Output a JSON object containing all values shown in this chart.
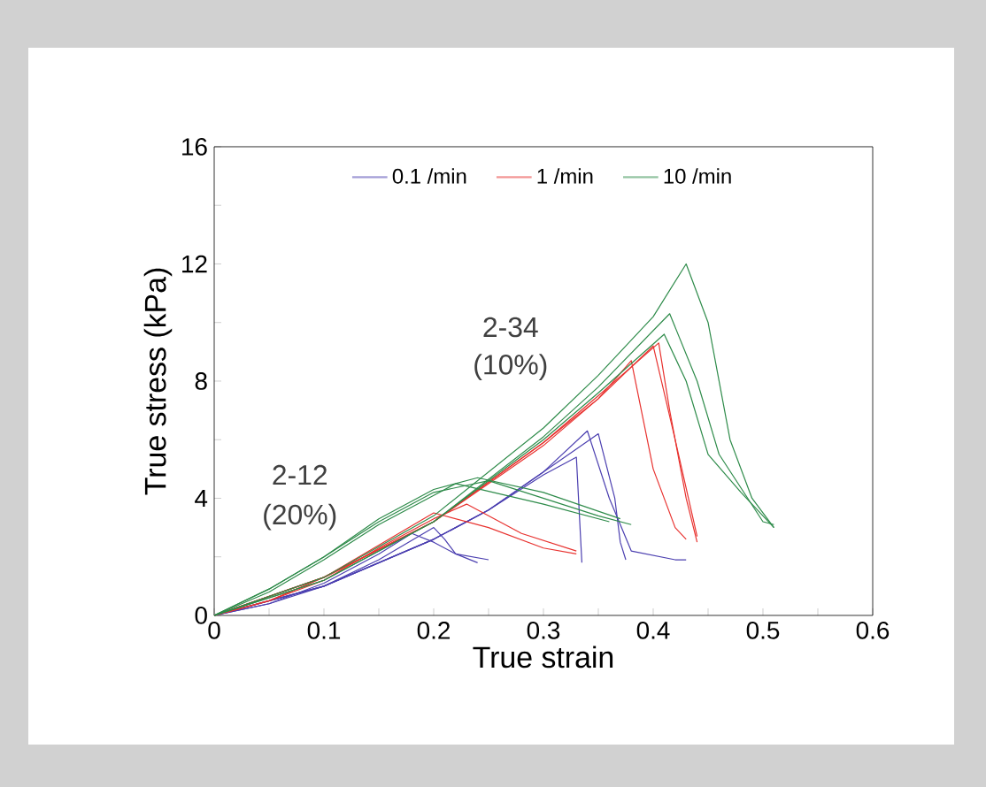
{
  "chart_data": {
    "type": "line",
    "xlabel": "True strain",
    "ylabel": "True stress (kPa)",
    "legend": "top",
    "xlim": [
      0,
      0.6
    ],
    "ylim": [
      0,
      16
    ],
    "xticks": [
      0,
      {
        "value": 0.05,
        "label": null
      },
      0.1,
      {
        "value": 0.15,
        "label": null
      },
      0.2,
      {
        "value": 0.25,
        "label": null
      },
      0.3,
      {
        "value": 0.35,
        "label": null
      },
      0.4,
      {
        "value": 0.45,
        "label": null
      },
      0.5,
      {
        "value": 0.55,
        "label": null
      },
      0.6
    ],
    "yticks": [
      0,
      {
        "value": 2,
        "label": null
      },
      4,
      {
        "value": 6,
        "label": null
      },
      8,
      {
        "value": 10,
        "label": null
      },
      12,
      {
        "value": 14,
        "label": null
      },
      16
    ],
    "annotations": [
      "2-12",
      "(20%)",
      "2-34",
      "(10%)"
    ],
    "series": [
      {
        "name": "0.1 /min",
        "color": "#4b3fb0",
        "x": [
          0,
          0.05,
          0.1,
          0.15,
          0.18,
          0.2,
          0.22,
          0.25
        ],
        "values": [
          0,
          0.4,
          1.1,
          2.1,
          2.8,
          2.5,
          2.1,
          1.9
        ]
      },
      {
        "color": "#4b3fb0",
        "x": [
          0,
          0.05,
          0.1,
          0.15,
          0.2,
          0.21,
          0.22,
          0.24
        ],
        "values": [
          0,
          0.4,
          1.0,
          1.9,
          3.0,
          2.6,
          2.1,
          1.8
        ]
      },
      {
        "color": "#4b3fb0",
        "x": [
          0,
          0.1,
          0.2,
          0.25,
          0.3,
          0.33,
          0.335
        ],
        "values": [
          0,
          1.0,
          2.6,
          3.6,
          4.8,
          5.4,
          1.8
        ]
      },
      {
        "color": "#4b3fb0",
        "x": [
          0,
          0.1,
          0.2,
          0.25,
          0.3,
          0.35,
          0.365,
          0.37,
          0.375
        ],
        "values": [
          0,
          1.0,
          2.6,
          3.6,
          4.9,
          6.2,
          4.0,
          2.5,
          1.9
        ]
      },
      {
        "color": "#4b3fb0",
        "x": [
          0,
          0.1,
          0.2,
          0.25,
          0.3,
          0.34,
          0.36,
          0.38,
          0.42,
          0.43
        ],
        "values": [
          0,
          1.0,
          2.6,
          3.6,
          4.9,
          6.3,
          4.0,
          2.2,
          1.9,
          1.9
        ]
      },
      {
        "name": "1 /min",
        "color": "#e8322f",
        "x": [
          0,
          0.05,
          0.1,
          0.15,
          0.2,
          0.25,
          0.3,
          0.33
        ],
        "values": [
          0,
          0.5,
          1.3,
          2.4,
          3.5,
          3.0,
          2.3,
          2.1
        ]
      },
      {
        "color": "#e8322f",
        "x": [
          0,
          0.05,
          0.1,
          0.15,
          0.2,
          0.23,
          0.28,
          0.33
        ],
        "values": [
          0,
          0.5,
          1.2,
          2.3,
          3.3,
          3.8,
          2.8,
          2.2
        ]
      },
      {
        "color": "#e8322f",
        "x": [
          0,
          0.1,
          0.2,
          0.3,
          0.35,
          0.38,
          0.4,
          0.42,
          0.43
        ],
        "values": [
          0,
          1.3,
          3.2,
          5.9,
          7.4,
          8.7,
          5.0,
          3.0,
          2.6
        ]
      },
      {
        "color": "#e8322f",
        "x": [
          0,
          0.1,
          0.2,
          0.3,
          0.35,
          0.405,
          0.415,
          0.43,
          0.44
        ],
        "values": [
          0,
          1.3,
          3.2,
          5.9,
          7.5,
          9.3,
          7.0,
          4.0,
          2.5
        ]
      },
      {
        "color": "#e8322f",
        "x": [
          0,
          0.1,
          0.2,
          0.3,
          0.35,
          0.4,
          0.42,
          0.44
        ],
        "values": [
          0,
          1.3,
          3.2,
          5.8,
          7.4,
          9.2,
          6.0,
          2.7
        ]
      },
      {
        "name": "10 /min",
        "color": "#2e8b4a",
        "x": [
          0,
          0.05,
          0.1,
          0.15,
          0.2,
          0.25,
          0.3,
          0.35,
          0.38
        ],
        "values": [
          0,
          0.9,
          2.0,
          3.2,
          4.2,
          4.6,
          4.0,
          3.4,
          3.1
        ]
      },
      {
        "color": "#2e8b4a",
        "x": [
          0,
          0.05,
          0.1,
          0.15,
          0.2,
          0.24,
          0.3,
          0.37
        ],
        "values": [
          0,
          0.9,
          2.0,
          3.3,
          4.3,
          4.7,
          4.2,
          3.3
        ]
      },
      {
        "color": "#2e8b4a",
        "x": [
          0,
          0.05,
          0.1,
          0.15,
          0.2,
          0.22,
          0.3,
          0.36
        ],
        "values": [
          0,
          0.8,
          1.9,
          3.1,
          4.1,
          4.5,
          3.8,
          3.2
        ]
      },
      {
        "color": "#2e8b4a",
        "x": [
          0,
          0.1,
          0.2,
          0.3,
          0.35,
          0.4,
          0.43,
          0.45,
          0.47,
          0.49,
          0.51
        ],
        "values": [
          0,
          1.3,
          3.4,
          6.4,
          8.2,
          10.2,
          12.0,
          10.0,
          6.0,
          4.0,
          3.0
        ]
      },
      {
        "color": "#2e8b4a",
        "x": [
          0,
          0.1,
          0.2,
          0.3,
          0.35,
          0.415,
          0.44,
          0.46,
          0.5,
          0.51
        ],
        "values": [
          0,
          1.2,
          3.2,
          6.1,
          7.8,
          10.3,
          8.0,
          5.5,
          3.2,
          3.1
        ]
      },
      {
        "color": "#2e8b4a",
        "x": [
          0,
          0.1,
          0.2,
          0.3,
          0.35,
          0.41,
          0.43,
          0.45,
          0.48,
          0.51
        ],
        "values": [
          0,
          1.2,
          3.2,
          6.0,
          7.6,
          9.6,
          8.0,
          5.5,
          4.2,
          3.0
        ]
      }
    ]
  }
}
